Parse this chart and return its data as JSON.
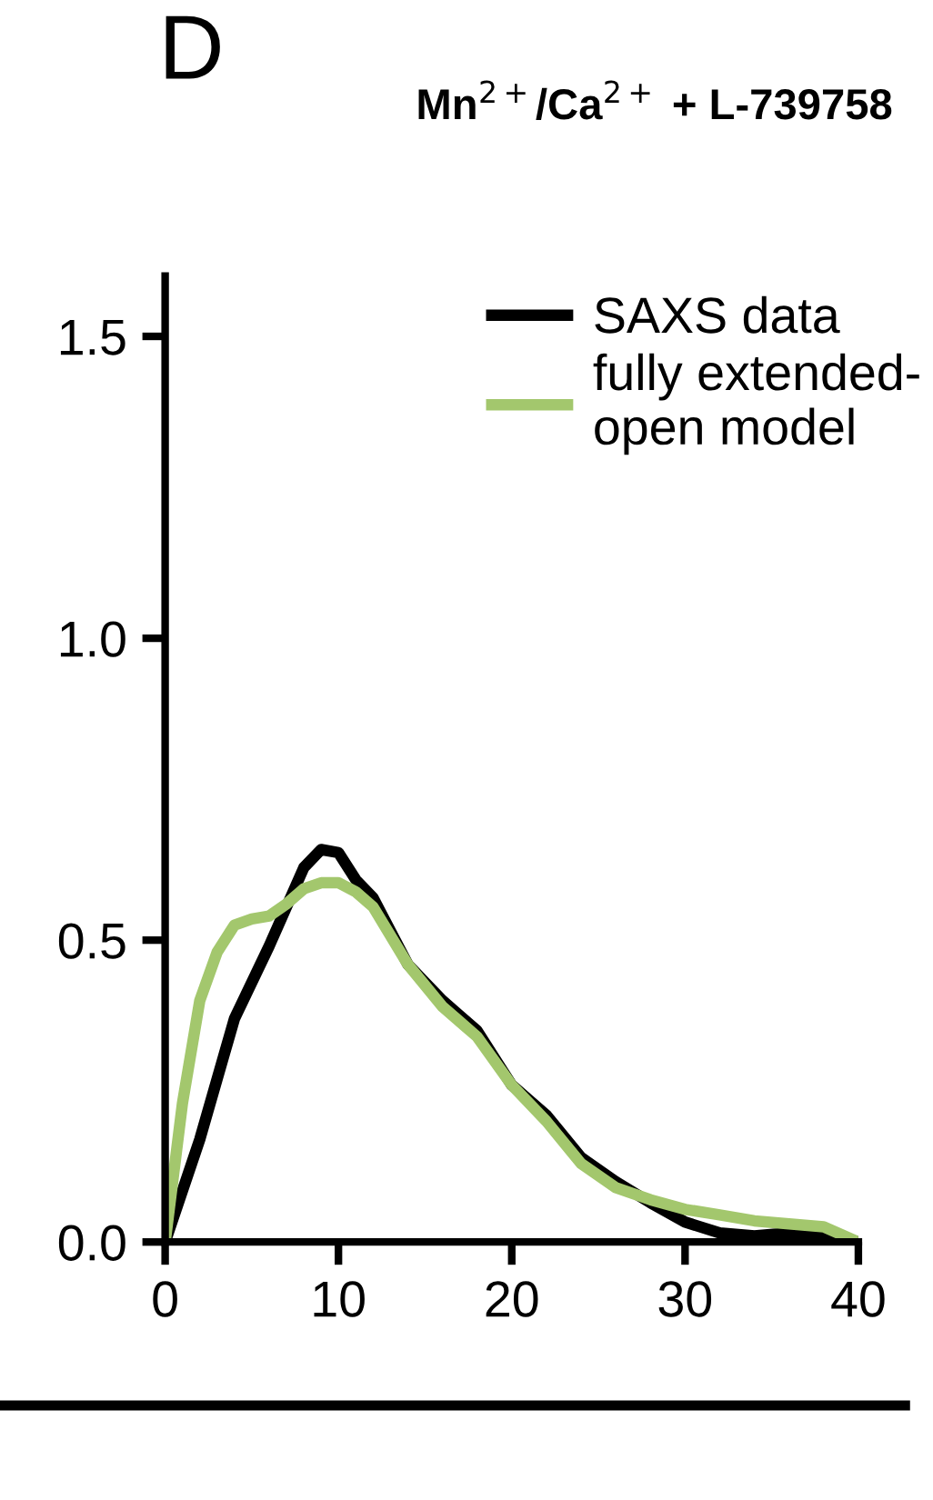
{
  "chart_data": {
    "type": "line",
    "title": "Mn$^{2+}$/Ca$^{2+}$ + L-739758",
    "annotations": [
      "D"
    ],
    "xlim": [
      0,
      40
    ],
    "xticks": [
      0,
      10,
      20,
      30,
      40
    ],
    "ylim": [
      0,
      1.6
    ],
    "yticks": [
      {
        "value": 0,
        "label": "0.0"
      },
      {
        "value": 0.5,
        "label": "0.5"
      },
      {
        "value": 1,
        "label": "1.0"
      },
      {
        "value": 1.5,
        "label": "1.5"
      }
    ],
    "grid": false,
    "legend": "top right",
    "marker": "none",
    "line_style": "solid",
    "series": [
      {
        "name": "SAXS data",
        "color": "#000000",
        "x": [
          0,
          2,
          4,
          6,
          8,
          9,
          10,
          11,
          12,
          14,
          16,
          18,
          20,
          22,
          24,
          26,
          28,
          30,
          32,
          34,
          36,
          38,
          40
        ],
        "values": [
          0,
          0.17,
          0.37,
          0.49,
          0.62,
          0.65,
          0.645,
          0.6,
          0.57,
          0.46,
          0.4,
          0.35,
          0.26,
          0.21,
          0.14,
          0.1,
          0.065,
          0.033,
          0.015,
          0.01,
          0.015,
          0.01,
          0
        ]
      },
      {
        "name": "fully extended-\nopen model",
        "color": "#a3c76d",
        "x": [
          0,
          1,
          2,
          3,
          4,
          5,
          6,
          7,
          8,
          9,
          10,
          11,
          12,
          14,
          16,
          18,
          20,
          22,
          24,
          26,
          28,
          30,
          32,
          34,
          36,
          38,
          40
        ],
        "values": [
          0,
          0.23,
          0.4,
          0.48,
          0.525,
          0.535,
          0.54,
          0.56,
          0.585,
          0.595,
          0.595,
          0.58,
          0.555,
          0.46,
          0.39,
          0.34,
          0.26,
          0.2,
          0.13,
          0.09,
          0.07,
          0.054,
          0.045,
          0.035,
          0.03,
          0.025,
          0
        ]
      }
    ]
  }
}
